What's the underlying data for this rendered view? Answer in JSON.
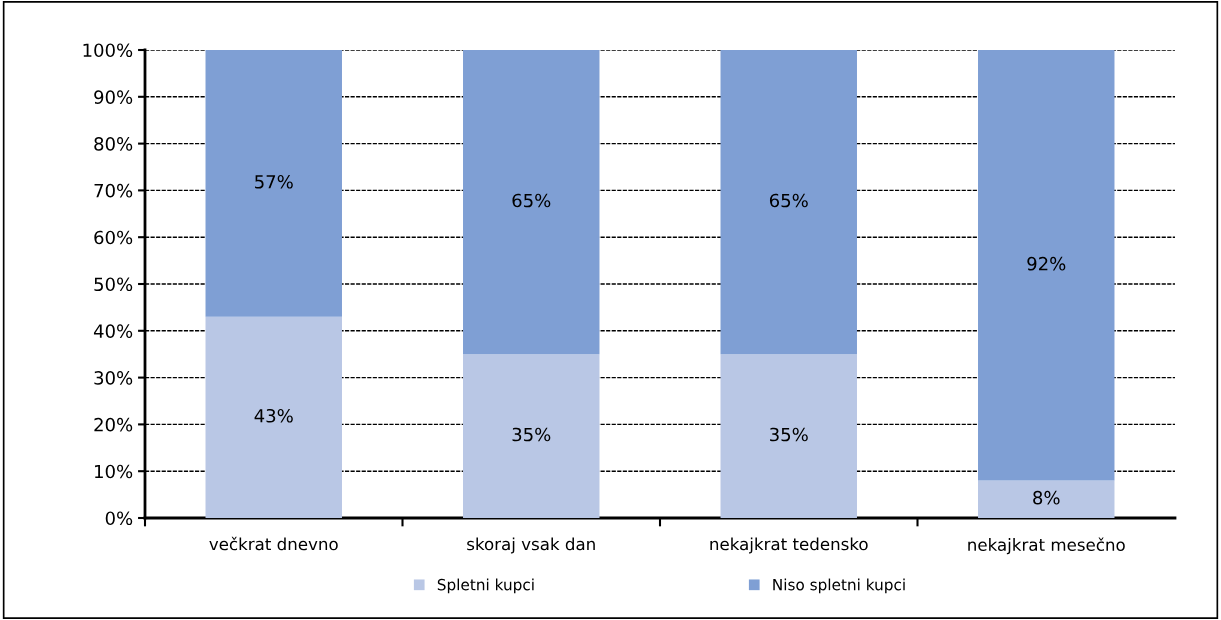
{
  "chart_data": {
    "type": "bar",
    "stacked": true,
    "categories": [
      "večkrat dnevno",
      "skoraj vsak dan",
      "nekajkrat tedensko",
      "nekajkrat mesečno"
    ],
    "series": [
      {
        "name": "Spletni kupci",
        "color": "#b9c7e5",
        "values": [
          43,
          35,
          35,
          8
        ],
        "value_labels": [
          "43%",
          "35%",
          "35%",
          "8%"
        ]
      },
      {
        "name": "Niso spletni kupci",
        "color": "#7f9fd4",
        "values": [
          57,
          65,
          65,
          92
        ],
        "value_labels": [
          "57%",
          "65%",
          "65%",
          "92%"
        ]
      }
    ],
    "ylim": [
      0,
      100
    ],
    "yticks": [
      {
        "value": 0,
        "label": "0%"
      },
      {
        "value": 10,
        "label": "10%"
      },
      {
        "value": 20,
        "label": "20%"
      },
      {
        "value": 30,
        "label": "30%"
      },
      {
        "value": 40,
        "label": "40%"
      },
      {
        "value": 50,
        "label": "50%"
      },
      {
        "value": 60,
        "label": "60%"
      },
      {
        "value": 70,
        "label": "70%"
      },
      {
        "value": 80,
        "label": "80%"
      },
      {
        "value": 90,
        "label": "90%"
      },
      {
        "value": 100,
        "label": "100%"
      }
    ],
    "grid": "y",
    "legend": "bottom"
  }
}
